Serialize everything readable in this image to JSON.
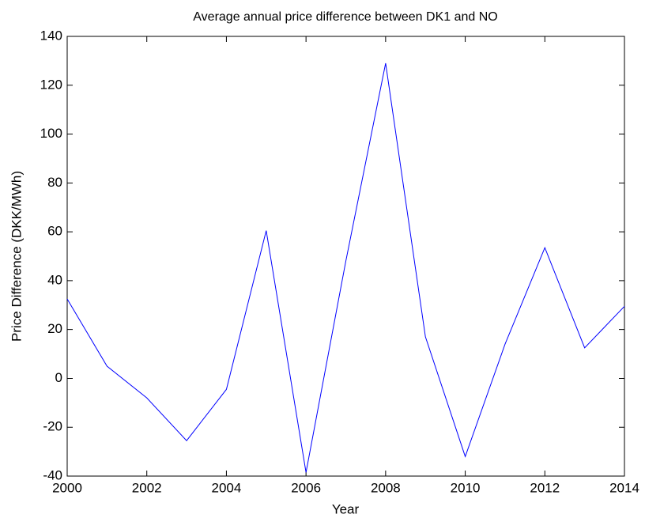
{
  "chart_data": {
    "type": "line",
    "title": "Average annual price difference between DK1 and NO",
    "x_label": "Year",
    "y_label": "Price Difference (DKK/MWh)",
    "x": [
      2000,
      2001,
      2002,
      2003,
      2004,
      2005,
      2006,
      2007,
      2008,
      2009,
      2010,
      2011,
      2012,
      2013,
      2014
    ],
    "series": [
      {
        "color": "#0000ff",
        "values": [
          32.5,
          5,
          -8,
          -25.5,
          -4.5,
          60.5,
          -38.5,
          48,
          129,
          17,
          -32,
          14,
          53.5,
          12.5,
          29.5
        ]
      }
    ],
    "xlim": [
      2000,
      2014
    ],
    "xticks": [
      2000,
      2002,
      2004,
      2006,
      2008,
      2010,
      2012,
      2014
    ],
    "ylim": [
      -40,
      140
    ],
    "yticks": [
      -40,
      -20,
      0,
      20,
      40,
      60,
      80,
      100,
      120,
      140
    ]
  }
}
